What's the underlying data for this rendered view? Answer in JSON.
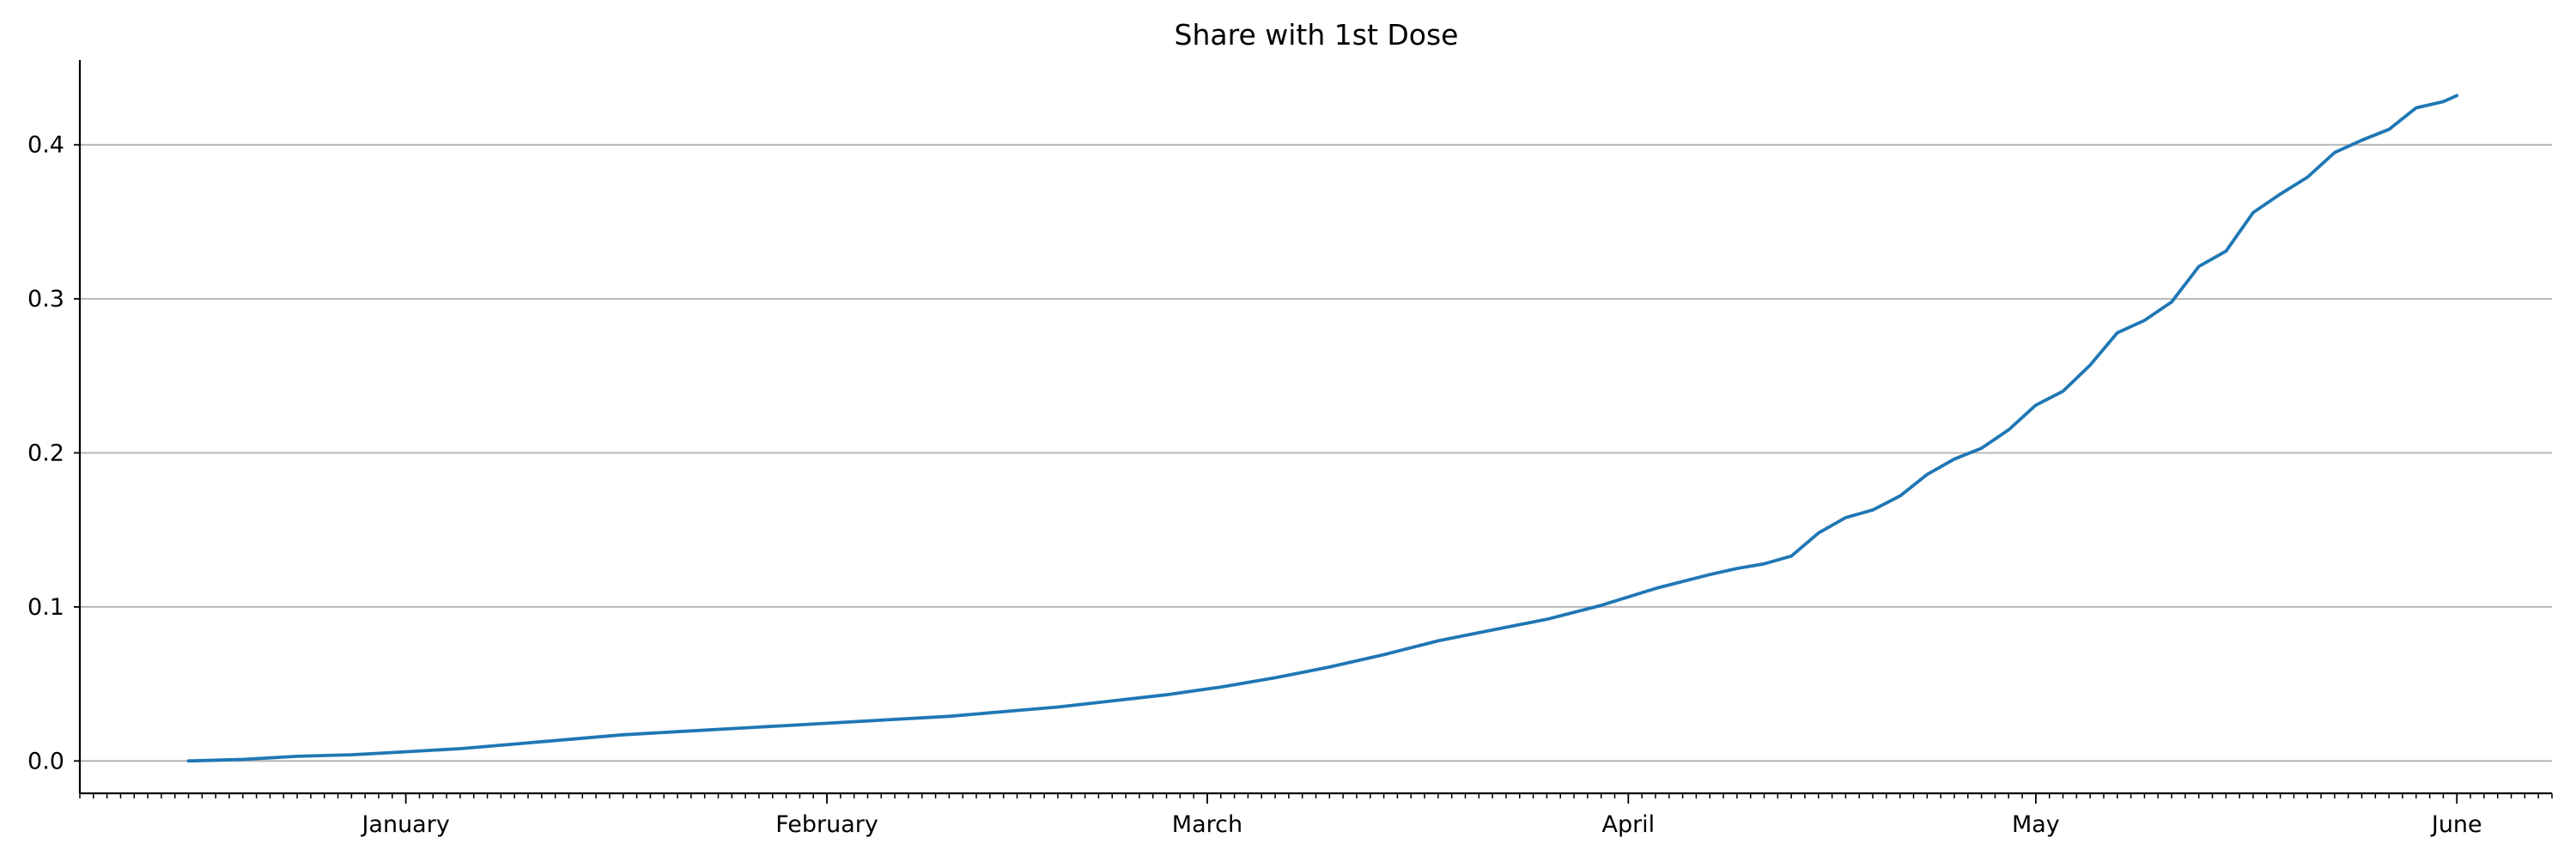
{
  "chart_data": {
    "type": "line",
    "title": "Share with 1st Dose",
    "xlabel": "",
    "ylabel": "",
    "x_tick_labels": [
      "January",
      "February",
      "March",
      "April",
      "May",
      "June"
    ],
    "y_tick_labels": [
      "0.0",
      "0.1",
      "0.2",
      "0.3",
      "0.4"
    ],
    "ylim": [
      -0.021,
      0.455
    ],
    "xlim": [
      "2020-12-08",
      "2021-06-08"
    ],
    "grid": "horizontal",
    "line_color": "#1f77b4",
    "grid_color": "#b0b0b0",
    "series": [
      {
        "x": [
          "2020-12-16",
          "2020-12-20",
          "2020-12-24",
          "2020-12-28",
          "2021-01-01",
          "2021-01-05",
          "2021-01-09",
          "2021-01-13",
          "2021-01-17",
          "2021-01-21",
          "2021-01-25",
          "2021-01-29",
          "2021-02-02",
          "2021-02-06",
          "2021-02-10",
          "2021-02-14",
          "2021-02-18",
          "2021-02-22",
          "2021-02-26",
          "2021-03-02",
          "2021-03-06",
          "2021-03-10",
          "2021-03-14",
          "2021-03-18",
          "2021-03-22",
          "2021-03-26",
          "2021-03-30",
          "2021-04-03",
          "2021-04-07",
          "2021-04-09",
          "2021-04-11",
          "2021-04-13",
          "2021-04-15",
          "2021-04-17",
          "2021-04-19",
          "2021-04-21",
          "2021-04-23",
          "2021-04-25",
          "2021-04-27",
          "2021-04-29",
          "2021-05-01",
          "2021-05-03",
          "2021-05-05",
          "2021-05-07",
          "2021-05-09",
          "2021-05-11",
          "2021-05-13",
          "2021-05-15",
          "2021-05-17",
          "2021-05-19",
          "2021-05-21",
          "2021-05-23",
          "2021-05-25",
          "2021-05-27",
          "2021-05-29",
          "2021-05-31",
          "2021-06-01"
        ],
        "y": [
          0.0,
          0.001,
          0.003,
          0.004,
          0.006,
          0.008,
          0.011,
          0.014,
          0.017,
          0.019,
          0.021,
          0.023,
          0.025,
          0.027,
          0.029,
          0.032,
          0.035,
          0.039,
          0.043,
          0.048,
          0.054,
          0.061,
          0.069,
          0.078,
          0.085,
          0.092,
          0.101,
          0.112,
          0.121,
          0.125,
          0.128,
          0.133,
          0.148,
          0.158,
          0.163,
          0.172,
          0.186,
          0.196,
          0.203,
          0.215,
          0.231,
          0.24,
          0.257,
          0.278,
          0.286,
          0.298,
          0.321,
          0.331,
          0.356,
          0.368,
          0.379,
          0.395,
          0.403,
          0.41,
          0.424,
          0.428,
          0.432
        ]
      }
    ]
  }
}
